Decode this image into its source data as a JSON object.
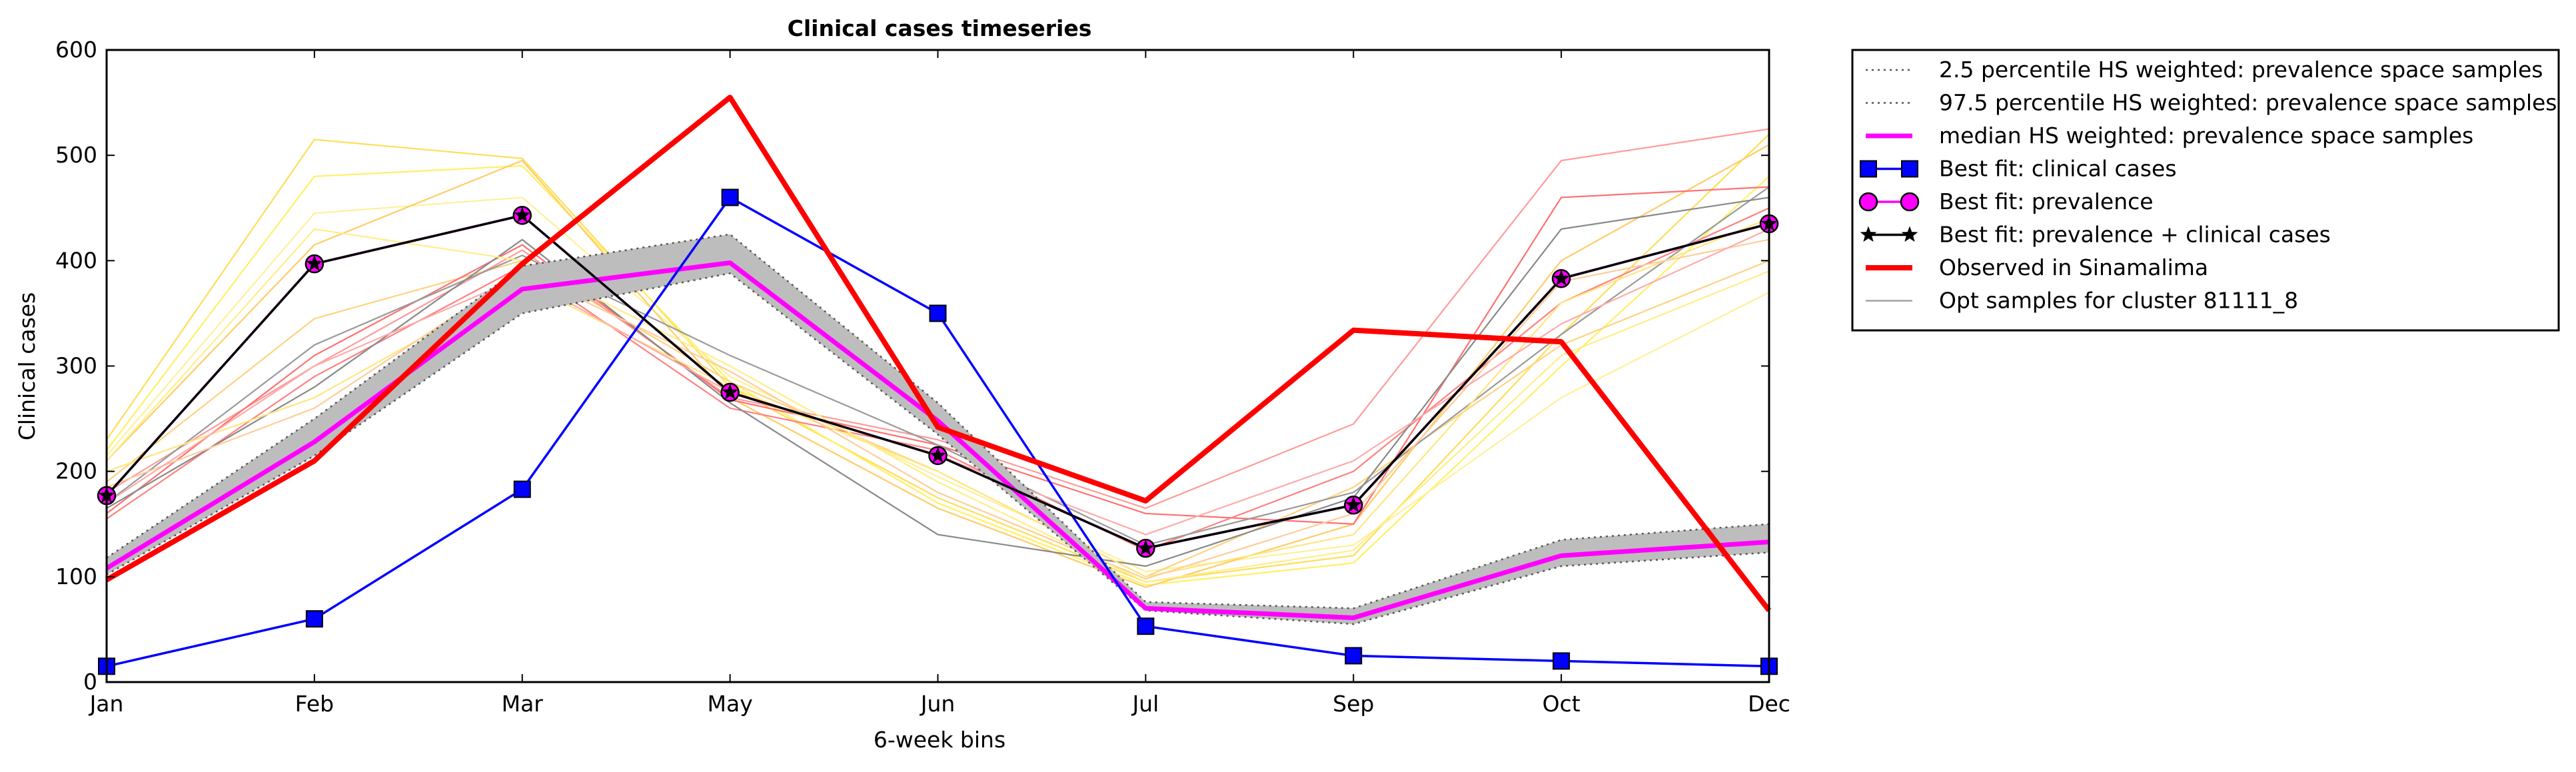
{
  "chart_data": {
    "type": "line",
    "title": "Clinical cases timeseries",
    "xlabel": "6-week bins",
    "ylabel": "Clinical cases",
    "categories": [
      "Jan",
      "Feb",
      "Mar",
      "May",
      "Jun",
      "Jul",
      "Sep",
      "Oct",
      "Dec"
    ],
    "ylim": [
      0,
      600
    ],
    "yticks": [
      0,
      100,
      200,
      300,
      400,
      500,
      600
    ],
    "grid": false,
    "legend_position": "outside-right",
    "band": {
      "lower": [
        102,
        215,
        350,
        388,
        235,
        68,
        55,
        110,
        123
      ],
      "upper": [
        118,
        250,
        395,
        425,
        265,
        76,
        70,
        135,
        150
      ],
      "color": "#bdbdbd"
    },
    "series": [
      {
        "name": "2.5 percentile HS weighted: prevalence space samples",
        "style": "dotted",
        "color": "#555555",
        "values": [
          102,
          215,
          350,
          388,
          235,
          68,
          55,
          110,
          123
        ]
      },
      {
        "name": "97.5 percentile HS weighted: prevalence space samples",
        "style": "dotted",
        "color": "#555555",
        "values": [
          118,
          250,
          395,
          425,
          265,
          76,
          70,
          135,
          150
        ]
      },
      {
        "name": "median HS weighted: prevalence space samples",
        "style": "median",
        "color": "#ff00ff",
        "values": [
          108,
          228,
          373,
          398,
          248,
          70,
          61,
          120,
          133
        ]
      },
      {
        "name": "Best fit: clinical cases",
        "style": "square",
        "color": "#0000ff",
        "values": [
          15,
          60,
          183,
          460,
          350,
          53,
          25,
          20,
          15
        ]
      },
      {
        "name": "Best fit: prevalence",
        "style": "circle",
        "color": "#ff00ff",
        "values": [
          177,
          397,
          443,
          275,
          215,
          127,
          168,
          383,
          435
        ]
      },
      {
        "name": "Best fit: prevalence + clinical cases",
        "style": "star",
        "color": "#000000",
        "values": [
          177,
          397,
          443,
          275,
          215,
          127,
          168,
          383,
          435
        ]
      },
      {
        "name": "Observed in Sinamalima",
        "style": "observed",
        "color": "#ff0000",
        "values": [
          97,
          210,
          397,
          555,
          242,
          172,
          334,
          323,
          68
        ]
      },
      {
        "name": "Opt samples for cluster 81111_8",
        "style": "thin",
        "color": "#999999",
        "values": [
          175,
          320,
          418,
          300,
          210,
          95,
          170,
          430,
          478
        ]
      }
    ],
    "opt_samples": [
      {
        "color": "#ffdd55",
        "values": [
          230,
          515,
          497,
          280,
          175,
          95,
          120,
          330,
          520
        ]
      },
      {
        "color": "#fff066",
        "values": [
          220,
          480,
          490,
          285,
          170,
          92,
          113,
          300,
          480
        ]
      },
      {
        "color": "#fff099",
        "values": [
          215,
          445,
          460,
          290,
          195,
          105,
          130,
          270,
          370
        ]
      },
      {
        "color": "#ffcc66",
        "values": [
          210,
          415,
          495,
          270,
          165,
          90,
          150,
          400,
          510
        ]
      },
      {
        "color": "#ffd27f",
        "values": [
          190,
          345,
          400,
          285,
          200,
          100,
          185,
          320,
          400
        ]
      },
      {
        "color": "#ff9a9a",
        "values": [
          180,
          300,
          410,
          270,
          230,
          165,
          245,
          495,
          525
        ]
      },
      {
        "color": "#ff7070",
        "values": [
          160,
          310,
          415,
          268,
          225,
          160,
          150,
          460,
          470
        ]
      },
      {
        "color": "#ff8080",
        "values": [
          155,
          290,
          395,
          260,
          220,
          125,
          200,
          360,
          450
        ]
      },
      {
        "color": "#999999",
        "values": [
          170,
          320,
          405,
          310,
          225,
          130,
          180,
          330,
          470
        ]
      },
      {
        "color": "#888888",
        "values": [
          165,
          280,
          420,
          265,
          140,
          110,
          175,
          430,
          460
        ]
      },
      {
        "color": "#ffe680",
        "values": [
          200,
          270,
          380,
          280,
          200,
          100,
          140,
          360,
          440
        ]
      },
      {
        "color": "#ffcc99",
        "values": [
          185,
          260,
          390,
          295,
          180,
          98,
          160,
          380,
          420
        ]
      },
      {
        "color": "#ffee88",
        "values": [
          210,
          430,
          400,
          300,
          190,
          95,
          125,
          310,
          390
        ]
      },
      {
        "color": "#ffaaaa",
        "values": [
          170,
          300,
          385,
          275,
          215,
          140,
          210,
          340,
          430
        ]
      }
    ]
  }
}
